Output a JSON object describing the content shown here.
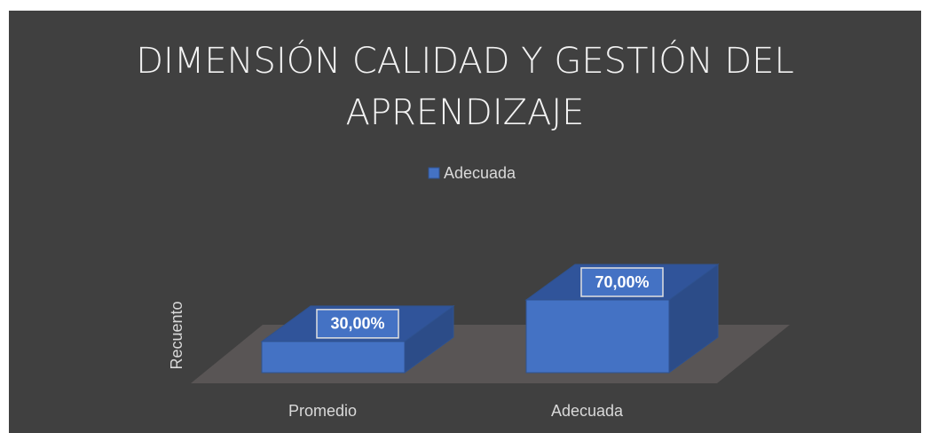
{
  "chart_data": {
    "type": "bar3d",
    "title": "DIMENSIÓN CALIDAD Y GESTIÓN DEL APRENDIZAJE",
    "ylabel": "Recuento",
    "categories": [
      "Promedio",
      "Adecuada"
    ],
    "series": [
      {
        "name": "Adecuada",
        "color": "#4472c4",
        "values": [
          30,
          70
        ],
        "value_labels": [
          "30,00%",
          "70,00%"
        ]
      }
    ],
    "legend": "top"
  }
}
